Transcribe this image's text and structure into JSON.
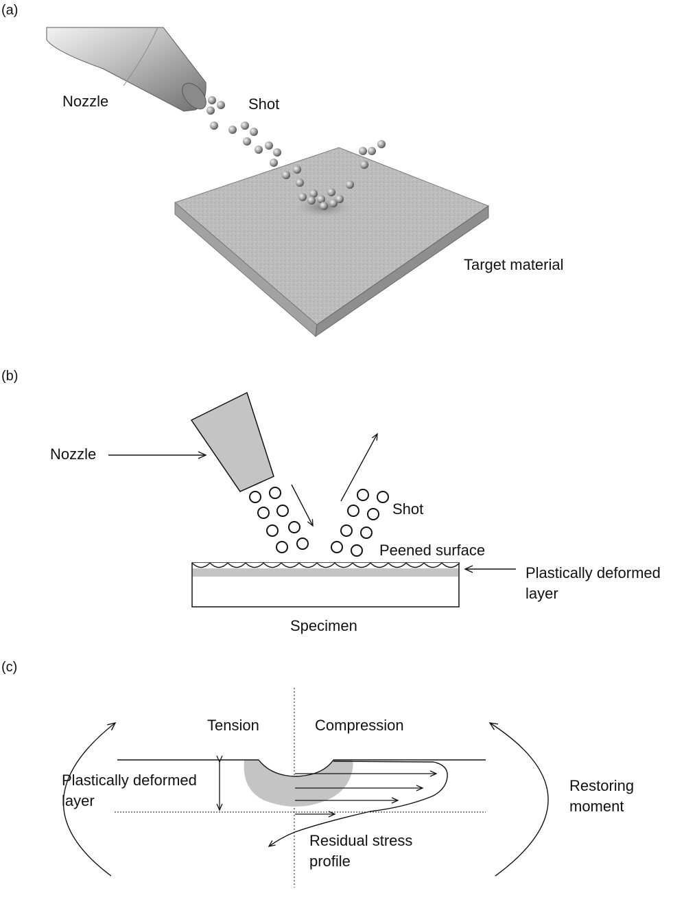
{
  "panel_a": {
    "label": "(a)",
    "nozzle": "Nozzle",
    "shot": "Shot",
    "target": "Target material"
  },
  "panel_b": {
    "label": "(b)",
    "nozzle": "Nozzle",
    "shot": "Shot",
    "peened_surface": "Peened surface",
    "layer_line1": "Plastically deformed",
    "layer_line2": "layer",
    "specimen": "Specimen"
  },
  "panel_c": {
    "label": "(c)",
    "tension": "Tension",
    "compression": "Compression",
    "layer_line1": "Plastically deformed",
    "layer_line2": "layer",
    "restoring_line1": "Restoring",
    "restoring_line2": "moment",
    "residual_line1": "Residual stress",
    "residual_line2": "profile"
  },
  "colors": {
    "shade": "#c4c4c4",
    "ink": "#111111",
    "plate_top": "#b9b9b9",
    "plate_side": "#8e8e8e"
  }
}
